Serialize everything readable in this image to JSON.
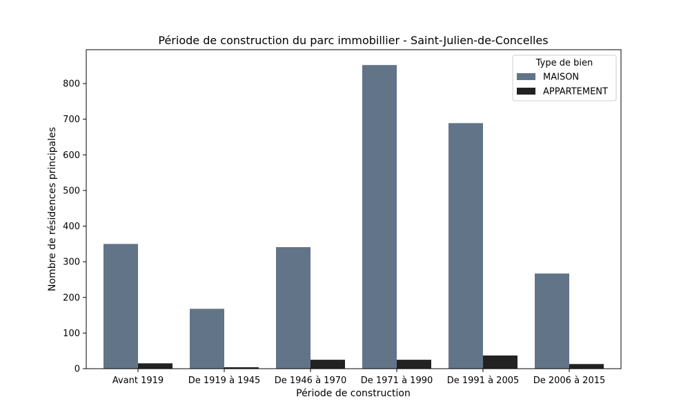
{
  "chart_data": {
    "type": "bar",
    "title": "Période de construction du parc immobillier - Saint-Julien-de-Concelles",
    "xlabel": "Période de construction",
    "ylabel": "Nombre de résidences principales",
    "categories": [
      "Avant 1919",
      "De 1919 à 1945",
      "De 1946 à 1970",
      "De 1971 à 1990",
      "De 1991 à 2005",
      "De 2006 à 2015"
    ],
    "series": [
      {
        "name": "MAISON",
        "values": [
          350,
          168,
          341,
          852,
          689,
          267
        ],
        "color": "#627488"
      },
      {
        "name": "APPARTEMENT",
        "values": [
          15,
          4,
          25,
          25,
          37,
          13
        ],
        "color": "#222222"
      }
    ],
    "ylim": [
      0,
      895
    ],
    "yticks": [
      0,
      100,
      200,
      300,
      400,
      500,
      600,
      700,
      800
    ],
    "legend": {
      "title": "Type de bien",
      "position": "top-right"
    },
    "grid": false
  }
}
